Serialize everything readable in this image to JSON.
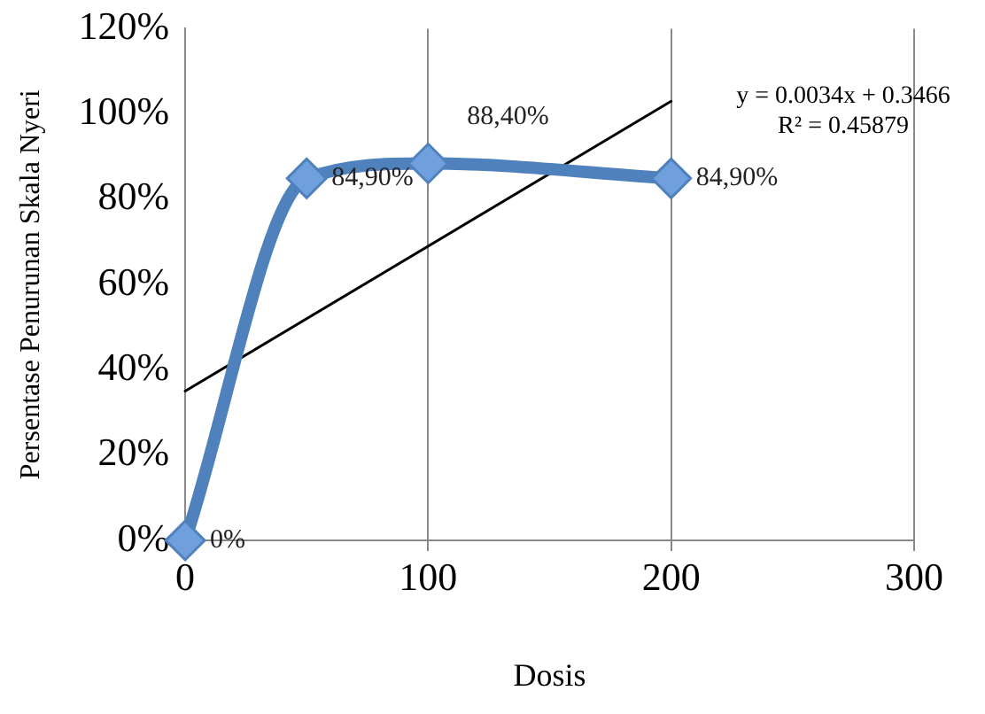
{
  "chart_data": {
    "type": "line",
    "xlabel": "Dosis",
    "ylabel": "Persentase Penurunan Skala Nyeri",
    "series": [
      {
        "color": "#4f81bd",
        "x": [
          0,
          50,
          100,
          200
        ],
        "values": [
          0,
          84.9,
          88.4,
          84.9
        ],
        "value_labels": [
          "0%",
          "84,90%",
          "88,40%",
          "84,90%"
        ],
        "marker": "diamond"
      },
      {
        "color": "#000000",
        "x": [
          0,
          200
        ],
        "values": [
          35,
          103
        ],
        "marker": "none"
      }
    ],
    "annotations": [
      "y = 0.0034x + 0.3466",
      "R² = 0.45879"
    ],
    "xlim": [
      0,
      300
    ],
    "xticks": [
      0,
      100,
      200,
      300
    ],
    "ylim": [
      0,
      120
    ],
    "yticks": [
      {
        "value": 0,
        "label": "0%"
      },
      {
        "value": 20,
        "label": "20%"
      },
      {
        "value": 40,
        "label": "40%"
      },
      {
        "value": 60,
        "label": "60%"
      },
      {
        "value": 80,
        "label": "80%"
      },
      {
        "value": 100,
        "label": "100%"
      },
      {
        "value": 120,
        "label": "120%"
      }
    ],
    "grid": "x",
    "legend": false
  }
}
